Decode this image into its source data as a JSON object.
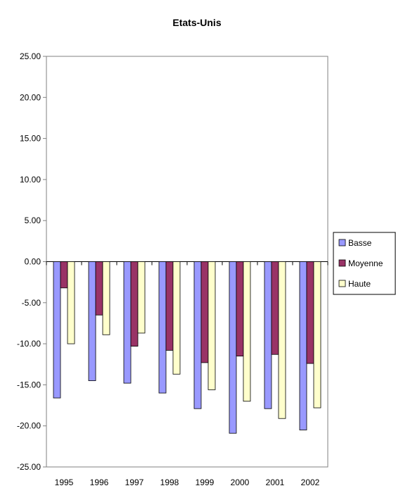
{
  "chart_data": {
    "type": "bar",
    "title": "Etats-Unis",
    "xlabel": "",
    "ylabel": "",
    "categories": [
      "1995",
      "1996",
      "1997",
      "1998",
      "1999",
      "2000",
      "2001",
      "2002"
    ],
    "series": [
      {
        "name": "Basse",
        "color": "#9999ff",
        "values": [
          -16.6,
          -14.5,
          -14.8,
          -16.0,
          -17.9,
          -20.9,
          -17.9,
          -20.5
        ]
      },
      {
        "name": "Moyenne",
        "color": "#993366",
        "values": [
          -3.2,
          -6.5,
          -10.3,
          -10.8,
          -12.3,
          -11.5,
          -11.3,
          -12.4
        ]
      },
      {
        "name": "Haute",
        "color": "#ffffcc",
        "values": [
          -10.0,
          -8.9,
          -8.7,
          -13.7,
          -15.6,
          -17.0,
          -19.1,
          -17.8
        ]
      }
    ],
    "ylim": [
      -25,
      25
    ],
    "y_ticks": [
      "25.00",
      "20.00",
      "15.00",
      "10.00",
      "5.00",
      "0.00",
      "-5.00",
      "-10.00",
      "-15.00",
      "-20.00",
      "-25.00"
    ],
    "grid": false,
    "legend_position": "right"
  }
}
